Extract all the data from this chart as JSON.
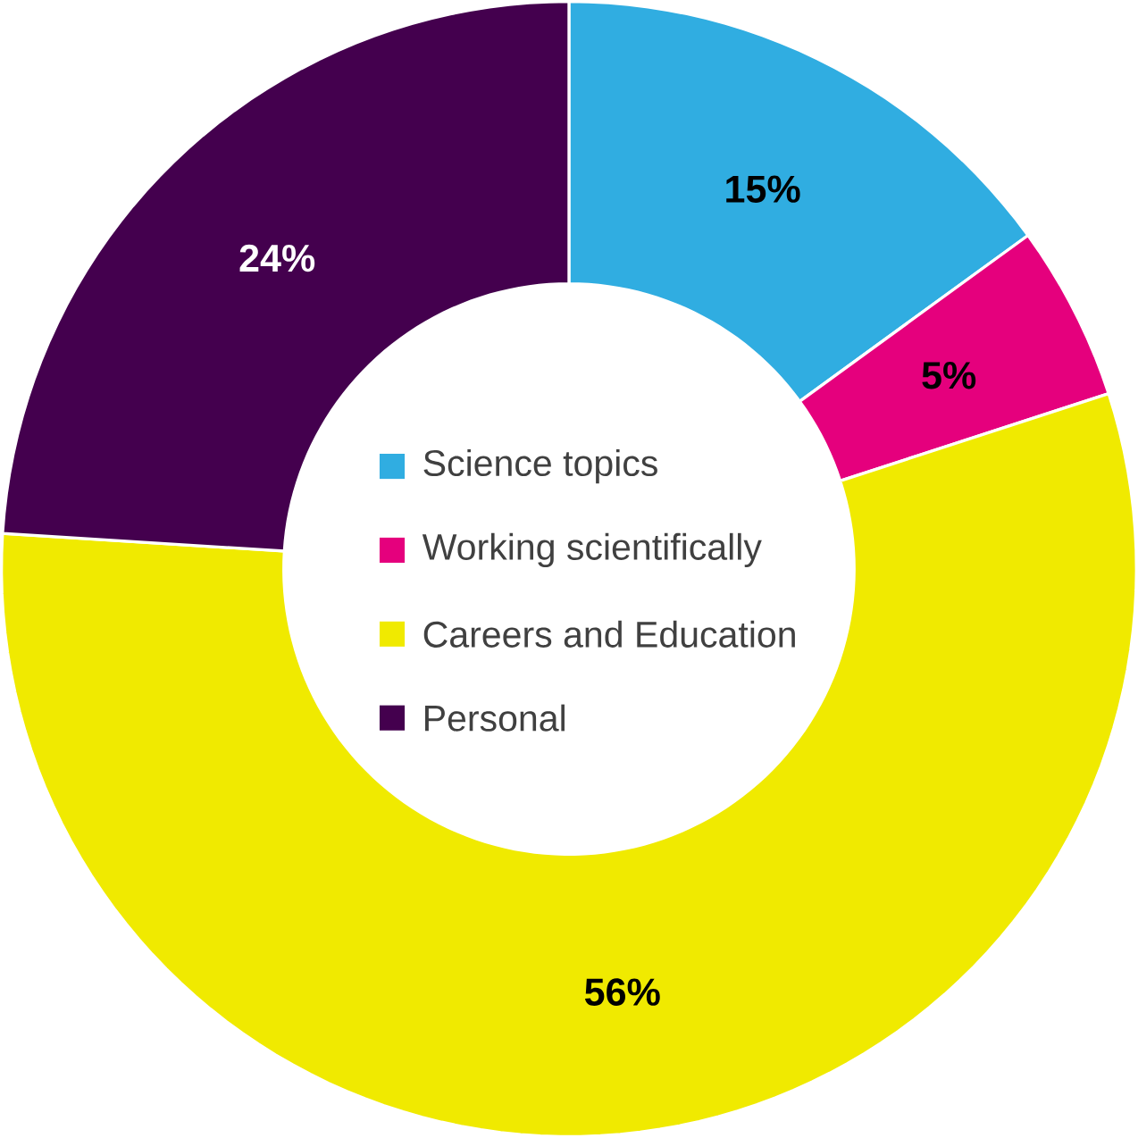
{
  "chart_data": {
    "type": "donut",
    "categories": [
      "Science topics",
      "Working scientifically",
      "Careers and Education",
      "Personal"
    ],
    "values": [
      15,
      5,
      56,
      24
    ],
    "colors": [
      "#30ade1",
      "#e5007d",
      "#f0ea00",
      "#44004e"
    ],
    "value_labels": [
      "15%",
      "5%",
      "56%",
      "24%"
    ],
    "legend": "center"
  }
}
